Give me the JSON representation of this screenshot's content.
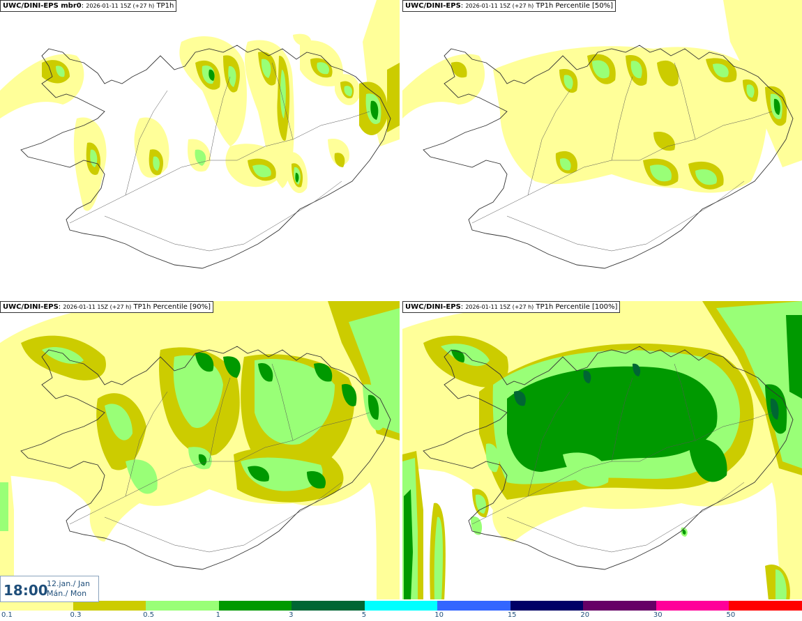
{
  "panels": [
    {
      "model": "UWC/DINI-EPS mbr0",
      "sep": ":",
      "run": "2026-01-11 15Z (+27 h)",
      "param": "TP1h"
    },
    {
      "model": "UWC/DINI-EPS",
      "sep": ":",
      "run": "2026-01-11 15Z (+27 h)",
      "param": "TP1h Percentile [50%]"
    },
    {
      "model": "UWC/DINI-EPS",
      "sep": ":",
      "run": "2026-01-11 15Z (+27 h)",
      "param": "TP1h Percentile [90%]"
    },
    {
      "model": "UWC/DINI-EPS",
      "sep": ":",
      "run": "2026-01-11 15Z (+27 h)",
      "param": "TP1h Percentile [100%]"
    }
  ],
  "valid_time": {
    "time": "18:00",
    "date_line1": "12.jan./ Jan",
    "date_line2": "Mán./ Mon"
  },
  "legend": {
    "labels": [
      "0.1",
      "0.3",
      "0.5",
      "1",
      "3",
      "5",
      "10",
      "15",
      "20",
      "30",
      "50"
    ],
    "colors": [
      "#ffff99",
      "#cccc00",
      "#99ff77",
      "#009900",
      "#006633",
      "#00ffff",
      "#3366ff",
      "#000066",
      "#660066",
      "#ff0099",
      "#ff0000"
    ]
  },
  "precip_colors": {
    "light": "#ffff99",
    "mid": "#cccc00",
    "green_light": "#99ff77",
    "green": "#009900",
    "dark": "#006633"
  }
}
